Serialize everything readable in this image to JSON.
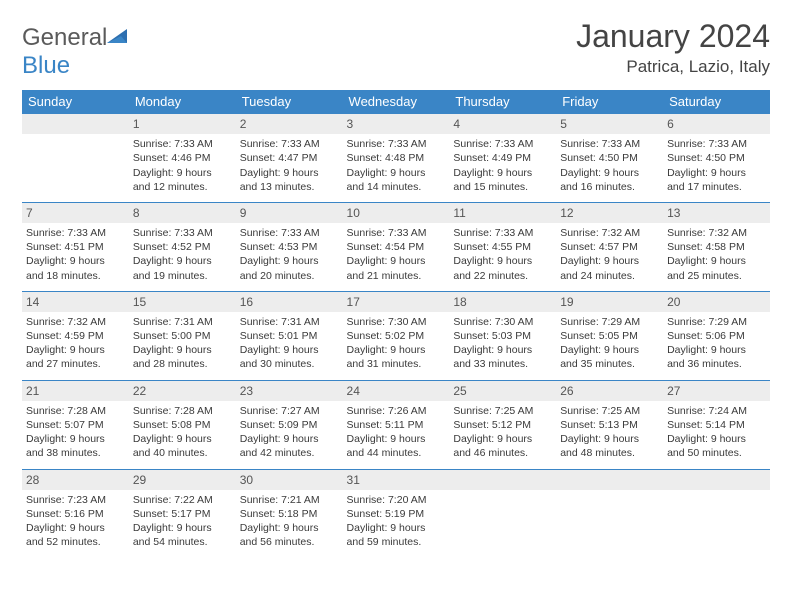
{
  "colors": {
    "header_bg": "#3a85c6",
    "header_text": "#ffffff",
    "row_border": "#3a85c6",
    "daynum_bg": "#ededed",
    "text": "#3a3a3a",
    "logo_gray": "#5a5a5a",
    "logo_blue": "#3a85c6",
    "background": "#ffffff"
  },
  "logo": {
    "part1": "General",
    "part2": "Blue"
  },
  "title": {
    "month": "January 2024",
    "location": "Patrica, Lazio, Italy"
  },
  "weekdays": [
    "Sunday",
    "Monday",
    "Tuesday",
    "Wednesday",
    "Thursday",
    "Friday",
    "Saturday"
  ],
  "weeks": [
    [
      null,
      {
        "n": "1",
        "sr": "Sunrise: 7:33 AM",
        "ss": "Sunset: 4:46 PM",
        "d1": "Daylight: 9 hours",
        "d2": "and 12 minutes."
      },
      {
        "n": "2",
        "sr": "Sunrise: 7:33 AM",
        "ss": "Sunset: 4:47 PM",
        "d1": "Daylight: 9 hours",
        "d2": "and 13 minutes."
      },
      {
        "n": "3",
        "sr": "Sunrise: 7:33 AM",
        "ss": "Sunset: 4:48 PM",
        "d1": "Daylight: 9 hours",
        "d2": "and 14 minutes."
      },
      {
        "n": "4",
        "sr": "Sunrise: 7:33 AM",
        "ss": "Sunset: 4:49 PM",
        "d1": "Daylight: 9 hours",
        "d2": "and 15 minutes."
      },
      {
        "n": "5",
        "sr": "Sunrise: 7:33 AM",
        "ss": "Sunset: 4:50 PM",
        "d1": "Daylight: 9 hours",
        "d2": "and 16 minutes."
      },
      {
        "n": "6",
        "sr": "Sunrise: 7:33 AM",
        "ss": "Sunset: 4:50 PM",
        "d1": "Daylight: 9 hours",
        "d2": "and 17 minutes."
      }
    ],
    [
      {
        "n": "7",
        "sr": "Sunrise: 7:33 AM",
        "ss": "Sunset: 4:51 PM",
        "d1": "Daylight: 9 hours",
        "d2": "and 18 minutes."
      },
      {
        "n": "8",
        "sr": "Sunrise: 7:33 AM",
        "ss": "Sunset: 4:52 PM",
        "d1": "Daylight: 9 hours",
        "d2": "and 19 minutes."
      },
      {
        "n": "9",
        "sr": "Sunrise: 7:33 AM",
        "ss": "Sunset: 4:53 PM",
        "d1": "Daylight: 9 hours",
        "d2": "and 20 minutes."
      },
      {
        "n": "10",
        "sr": "Sunrise: 7:33 AM",
        "ss": "Sunset: 4:54 PM",
        "d1": "Daylight: 9 hours",
        "d2": "and 21 minutes."
      },
      {
        "n": "11",
        "sr": "Sunrise: 7:33 AM",
        "ss": "Sunset: 4:55 PM",
        "d1": "Daylight: 9 hours",
        "d2": "and 22 minutes."
      },
      {
        "n": "12",
        "sr": "Sunrise: 7:32 AM",
        "ss": "Sunset: 4:57 PM",
        "d1": "Daylight: 9 hours",
        "d2": "and 24 minutes."
      },
      {
        "n": "13",
        "sr": "Sunrise: 7:32 AM",
        "ss": "Sunset: 4:58 PM",
        "d1": "Daylight: 9 hours",
        "d2": "and 25 minutes."
      }
    ],
    [
      {
        "n": "14",
        "sr": "Sunrise: 7:32 AM",
        "ss": "Sunset: 4:59 PM",
        "d1": "Daylight: 9 hours",
        "d2": "and 27 minutes."
      },
      {
        "n": "15",
        "sr": "Sunrise: 7:31 AM",
        "ss": "Sunset: 5:00 PM",
        "d1": "Daylight: 9 hours",
        "d2": "and 28 minutes."
      },
      {
        "n": "16",
        "sr": "Sunrise: 7:31 AM",
        "ss": "Sunset: 5:01 PM",
        "d1": "Daylight: 9 hours",
        "d2": "and 30 minutes."
      },
      {
        "n": "17",
        "sr": "Sunrise: 7:30 AM",
        "ss": "Sunset: 5:02 PM",
        "d1": "Daylight: 9 hours",
        "d2": "and 31 minutes."
      },
      {
        "n": "18",
        "sr": "Sunrise: 7:30 AM",
        "ss": "Sunset: 5:03 PM",
        "d1": "Daylight: 9 hours",
        "d2": "and 33 minutes."
      },
      {
        "n": "19",
        "sr": "Sunrise: 7:29 AM",
        "ss": "Sunset: 5:05 PM",
        "d1": "Daylight: 9 hours",
        "d2": "and 35 minutes."
      },
      {
        "n": "20",
        "sr": "Sunrise: 7:29 AM",
        "ss": "Sunset: 5:06 PM",
        "d1": "Daylight: 9 hours",
        "d2": "and 36 minutes."
      }
    ],
    [
      {
        "n": "21",
        "sr": "Sunrise: 7:28 AM",
        "ss": "Sunset: 5:07 PM",
        "d1": "Daylight: 9 hours",
        "d2": "and 38 minutes."
      },
      {
        "n": "22",
        "sr": "Sunrise: 7:28 AM",
        "ss": "Sunset: 5:08 PM",
        "d1": "Daylight: 9 hours",
        "d2": "and 40 minutes."
      },
      {
        "n": "23",
        "sr": "Sunrise: 7:27 AM",
        "ss": "Sunset: 5:09 PM",
        "d1": "Daylight: 9 hours",
        "d2": "and 42 minutes."
      },
      {
        "n": "24",
        "sr": "Sunrise: 7:26 AM",
        "ss": "Sunset: 5:11 PM",
        "d1": "Daylight: 9 hours",
        "d2": "and 44 minutes."
      },
      {
        "n": "25",
        "sr": "Sunrise: 7:25 AM",
        "ss": "Sunset: 5:12 PM",
        "d1": "Daylight: 9 hours",
        "d2": "and 46 minutes."
      },
      {
        "n": "26",
        "sr": "Sunrise: 7:25 AM",
        "ss": "Sunset: 5:13 PM",
        "d1": "Daylight: 9 hours",
        "d2": "and 48 minutes."
      },
      {
        "n": "27",
        "sr": "Sunrise: 7:24 AM",
        "ss": "Sunset: 5:14 PM",
        "d1": "Daylight: 9 hours",
        "d2": "and 50 minutes."
      }
    ],
    [
      {
        "n": "28",
        "sr": "Sunrise: 7:23 AM",
        "ss": "Sunset: 5:16 PM",
        "d1": "Daylight: 9 hours",
        "d2": "and 52 minutes."
      },
      {
        "n": "29",
        "sr": "Sunrise: 7:22 AM",
        "ss": "Sunset: 5:17 PM",
        "d1": "Daylight: 9 hours",
        "d2": "and 54 minutes."
      },
      {
        "n": "30",
        "sr": "Sunrise: 7:21 AM",
        "ss": "Sunset: 5:18 PM",
        "d1": "Daylight: 9 hours",
        "d2": "and 56 minutes."
      },
      {
        "n": "31",
        "sr": "Sunrise: 7:20 AM",
        "ss": "Sunset: 5:19 PM",
        "d1": "Daylight: 9 hours",
        "d2": "and 59 minutes."
      },
      null,
      null,
      null
    ]
  ]
}
